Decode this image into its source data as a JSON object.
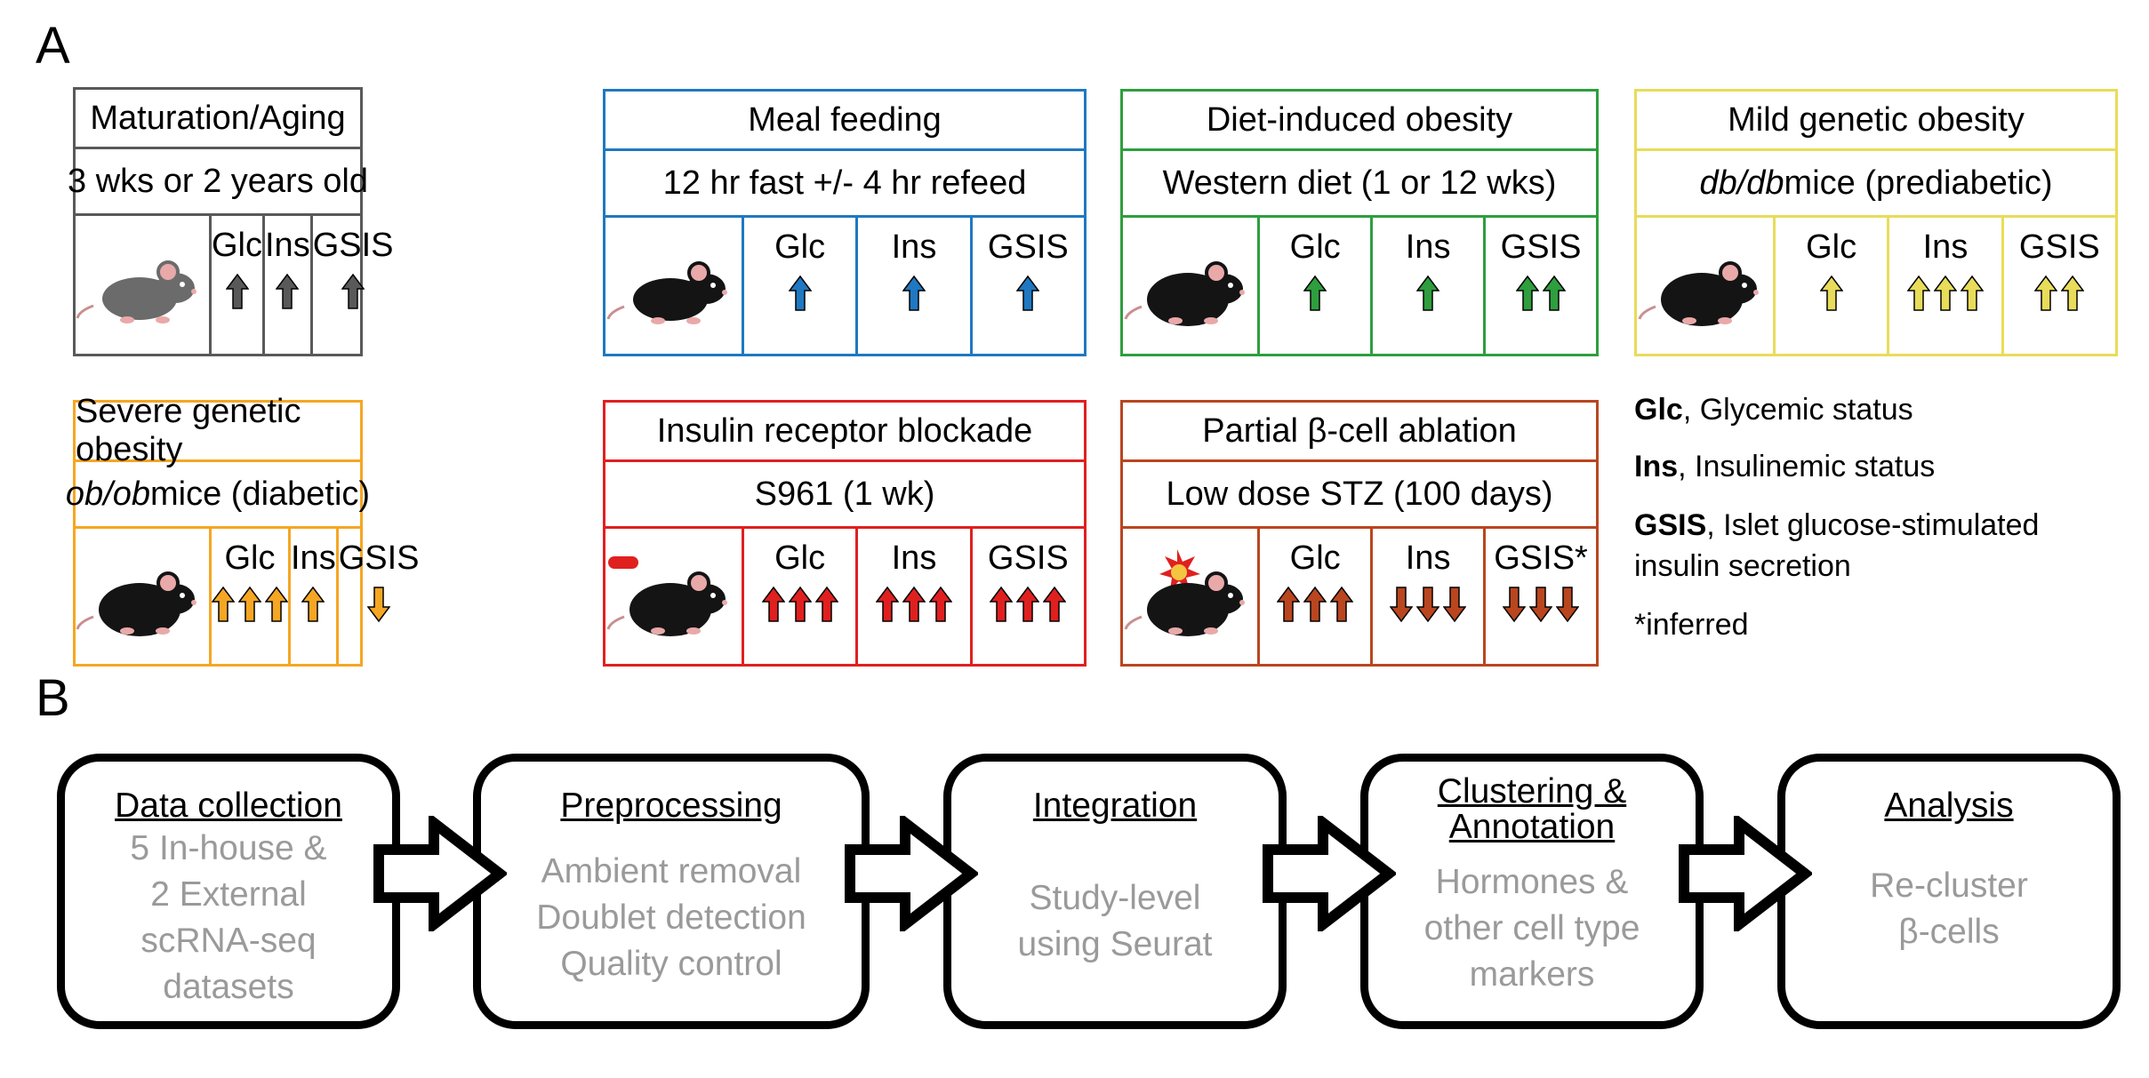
{
  "panels": {
    "a": "A",
    "b": "B"
  },
  "trait_labels": {
    "glc": "Glc",
    "ins": "Ins",
    "gsis": "GSIS"
  },
  "models": [
    {
      "title": "Maturation/Aging",
      "subtitle": "3 wks or 2 years old",
      "subtitle_italic": "",
      "color": "#595959",
      "mouse": "mouse-gray",
      "glc": {
        "dir": "up",
        "count": 1
      },
      "ins": {
        "dir": "up",
        "count": 1
      },
      "gsis": {
        "dir": "up",
        "count": 1
      },
      "gsis_label": "GSIS"
    },
    {
      "title": "Meal feeding",
      "subtitle": "12 hr fast +/- 4 hr refeed",
      "subtitle_italic": "",
      "color": "#1f78c1",
      "mouse": "mouse-black",
      "glc": {
        "dir": "up",
        "count": 1
      },
      "ins": {
        "dir": "up",
        "count": 1
      },
      "gsis": {
        "dir": "up",
        "count": 1
      },
      "gsis_label": "GSIS"
    },
    {
      "title": "Diet-induced obesity",
      "subtitle": "Western diet (1 or 12 wks)",
      "subtitle_italic": "",
      "color": "#2e9e3e",
      "mouse": "mouse-black-fat",
      "glc": {
        "dir": "up",
        "count": 1
      },
      "ins": {
        "dir": "up",
        "count": 1
      },
      "gsis": {
        "dir": "up",
        "count": 2
      },
      "gsis_label": "GSIS"
    },
    {
      "title": "Mild genetic obesity",
      "subtitle": " mice (prediabetic)",
      "subtitle_italic": "db/db",
      "color": "#e8dc5a",
      "mouse": "mouse-black-fat",
      "glc": {
        "dir": "up",
        "count": 1
      },
      "ins": {
        "dir": "up",
        "count": 3
      },
      "gsis": {
        "dir": "up",
        "count": 2
      },
      "gsis_label": "GSIS"
    },
    {
      "title": "Severe genetic obesity",
      "subtitle": " mice (diabetic)",
      "subtitle_italic": "ob/ob",
      "color": "#f5a623",
      "mouse": "mouse-black-fat",
      "glc": {
        "dir": "up",
        "count": 3
      },
      "ins": {
        "dir": "up",
        "count": 1
      },
      "gsis": {
        "dir": "down",
        "count": 1
      },
      "gsis_label": "GSIS"
    },
    {
      "title": "Insulin receptor blockade",
      "subtitle": "S961 (1 wk)",
      "subtitle_italic": "",
      "color": "#e0201f",
      "mouse": "mouse-black-pill",
      "glc": {
        "dir": "up",
        "count": 3
      },
      "ins": {
        "dir": "up",
        "count": 3
      },
      "gsis": {
        "dir": "up",
        "count": 3
      },
      "gsis_label": "GSIS"
    },
    {
      "title": "Partial β-cell ablation",
      "subtitle": "Low dose STZ (100 days)",
      "subtitle_italic": "",
      "color": "#b9461f",
      "mouse": "mouse-black-hit",
      "glc": {
        "dir": "up",
        "count": 3
      },
      "ins": {
        "dir": "down",
        "count": 3
      },
      "gsis": {
        "dir": "down",
        "count": 3
      },
      "gsis_label": "GSIS*"
    }
  ],
  "legend": [
    {
      "term": "Glc",
      "text": ", Glycemic status"
    },
    {
      "term": "Ins",
      "text": ", Insulinemic status"
    },
    {
      "term": "GSIS",
      "text": ", Islet glucose-stimulated\ninsulin secretion"
    },
    {
      "term": "",
      "text": "*inferred"
    }
  ],
  "workflow": [
    {
      "title": "Data collection",
      "desc": "5 In-house &\n2 External\nscRNA-seq\ndatasets"
    },
    {
      "title": "Preprocessing",
      "desc": "Ambient removal\nDoublet detection\nQuality control"
    },
    {
      "title": "Integration",
      "desc": "Study-level\nusing Seurat"
    },
    {
      "title": "Clustering &\nAnnotation",
      "desc": "Hormones &\nother cell type\nmarkers"
    },
    {
      "title": "Analysis",
      "desc": "Re-cluster\nβ-cells"
    }
  ]
}
